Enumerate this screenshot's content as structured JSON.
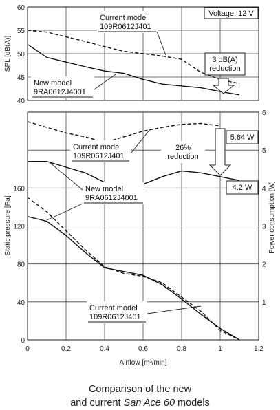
{
  "chart_data": [
    {
      "type": "line",
      "panel": "noise",
      "ylabel": "SPL [dB(A)]",
      "ylim": [
        40,
        60
      ],
      "yticks": [
        40,
        45,
        50,
        55,
        60
      ],
      "xlim": [
        0,
        1.2
      ],
      "voltage_label": "Voltage: 12 V",
      "series": [
        {
          "name": "Current model 109R0612J401",
          "style": "dashed",
          "x": [
            0,
            0.1,
            0.2,
            0.3,
            0.4,
            0.5,
            0.6,
            0.7,
            0.8,
            0.9,
            1.0,
            1.1
          ],
          "y": [
            55,
            54.6,
            53.6,
            52.6,
            51.5,
            50.5,
            50,
            49.5,
            48.8,
            46,
            44.5,
            43.6
          ]
        },
        {
          "name": "New model 9RA0612J4001",
          "style": "solid",
          "x": [
            0,
            0.1,
            0.2,
            0.3,
            0.4,
            0.5,
            0.6,
            0.7,
            0.8,
            0.9,
            1.0,
            1.1
          ],
          "y": [
            52,
            49.2,
            48.2,
            47.2,
            46.3,
            45.8,
            44.5,
            43.5,
            43.1,
            42.7,
            41.9,
            41.2
          ]
        }
      ],
      "annotations": [
        {
          "id": "spl_current",
          "lines": [
            "Current model",
            "109R0612J401"
          ]
        },
        {
          "id": "spl_new",
          "lines": [
            "New model",
            "9RA0612J4001"
          ]
        },
        {
          "id": "spl_reduction",
          "lines": [
            "3 dB(A)",
            "reduction"
          ]
        }
      ]
    },
    {
      "type": "line",
      "panel": "pressure-power",
      "xlabel": "Airflow [m³/min]",
      "xlim": [
        0,
        1.2
      ],
      "xticks": [
        0,
        0.2,
        0.4,
        0.6,
        0.8,
        1,
        1.2
      ],
      "ylabel_left": "Static pressure [Pa]",
      "ylim_left": [
        0,
        240
      ],
      "yticks_left": [
        0,
        40,
        80,
        120,
        160
      ],
      "ylabel_right": "Power consumption [W]",
      "ylim_right": [
        0,
        6
      ],
      "yticks_right": [
        1,
        2,
        3,
        4,
        5,
        6
      ],
      "series": [
        {
          "name": "Current model pressure",
          "axis": "left",
          "style": "dashed",
          "x": [
            0,
            0.1,
            0.2,
            0.3,
            0.4,
            0.5,
            0.6,
            0.7,
            0.8,
            0.9,
            1.0,
            1.1
          ],
          "y": [
            150,
            135,
            115,
            95,
            77,
            70,
            67,
            60,
            45,
            30,
            10,
            0
          ]
        },
        {
          "name": "New model pressure",
          "axis": "left",
          "style": "solid",
          "x": [
            0,
            0.1,
            0.2,
            0.3,
            0.4,
            0.5,
            0.6,
            0.7,
            0.8,
            0.9,
            1.0,
            1.1
          ],
          "y": [
            130,
            125,
            110,
            92,
            76,
            72,
            68,
            58,
            43,
            27,
            12,
            0
          ]
        },
        {
          "name": "Current model power",
          "axis": "right",
          "style": "dashed",
          "x": [
            0,
            0.1,
            0.2,
            0.3,
            0.4,
            0.5,
            0.6,
            0.7,
            0.8,
            0.9,
            1.0
          ],
          "y": [
            5.75,
            5.6,
            5.45,
            5.35,
            5.2,
            5.35,
            5.5,
            5.6,
            5.68,
            5.7,
            5.64
          ]
        },
        {
          "name": "New model power",
          "axis": "right",
          "style": "solid",
          "x": [
            0,
            0.1,
            0.2,
            0.3,
            0.4,
            0.5,
            0.6,
            0.7,
            0.8,
            0.9,
            1.0,
            1.1
          ],
          "y": [
            4.7,
            4.7,
            4.55,
            4.4,
            4.15,
            4.05,
            4.1,
            4.3,
            4.45,
            4.4,
            4.3,
            4.2
          ]
        }
      ],
      "annotations": [
        {
          "id": "pw_current",
          "lines": [
            "Current model",
            "109R0612J401"
          ]
        },
        {
          "id": "pw_reduction",
          "lines": [
            "26%",
            "reduction"
          ]
        },
        {
          "id": "pw_new",
          "lines": [
            "New model",
            "9RA0612J4001"
          ]
        },
        {
          "id": "pr_current",
          "lines": [
            "Current model",
            "109R0612J401"
          ]
        },
        {
          "id": "val_current",
          "lines": [
            "5.64 W"
          ]
        },
        {
          "id": "val_new",
          "lines": [
            "4.2 W"
          ]
        }
      ]
    }
  ],
  "caption": {
    "line1": "Comparison of the new",
    "line2_prefix": "and current ",
    "line2_italic": "San Ace 60",
    "line2_suffix": " models"
  }
}
